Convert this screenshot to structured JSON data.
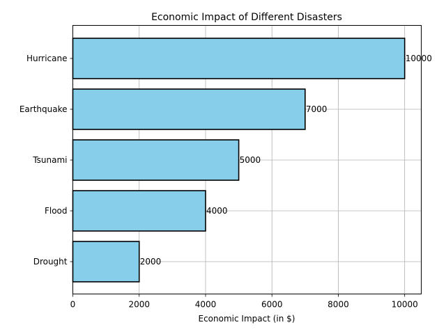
{
  "chart_data": {
    "type": "bar",
    "orientation": "horizontal",
    "title": "Economic Impact of Different Disasters",
    "xlabel": "Economic Impact (in $)",
    "ylabel": "",
    "categories": [
      "Hurricane",
      "Earthquake",
      "Tsunami",
      "Flood",
      "Drought"
    ],
    "values": [
      10000,
      7000,
      5000,
      4000,
      2000
    ],
    "data_labels": [
      "10000",
      "7000",
      "5000",
      "4000",
      "2000"
    ],
    "xlim": [
      0,
      10500
    ],
    "xticks": [
      0,
      2000,
      4000,
      6000,
      8000,
      10000
    ],
    "xtick_labels": [
      "0",
      "2000",
      "4000",
      "6000",
      "8000",
      "10000"
    ],
    "grid": true,
    "bar_color": "#87ceeb",
    "edge_color": "#000000",
    "grid_color": "#b0b0b0"
  }
}
